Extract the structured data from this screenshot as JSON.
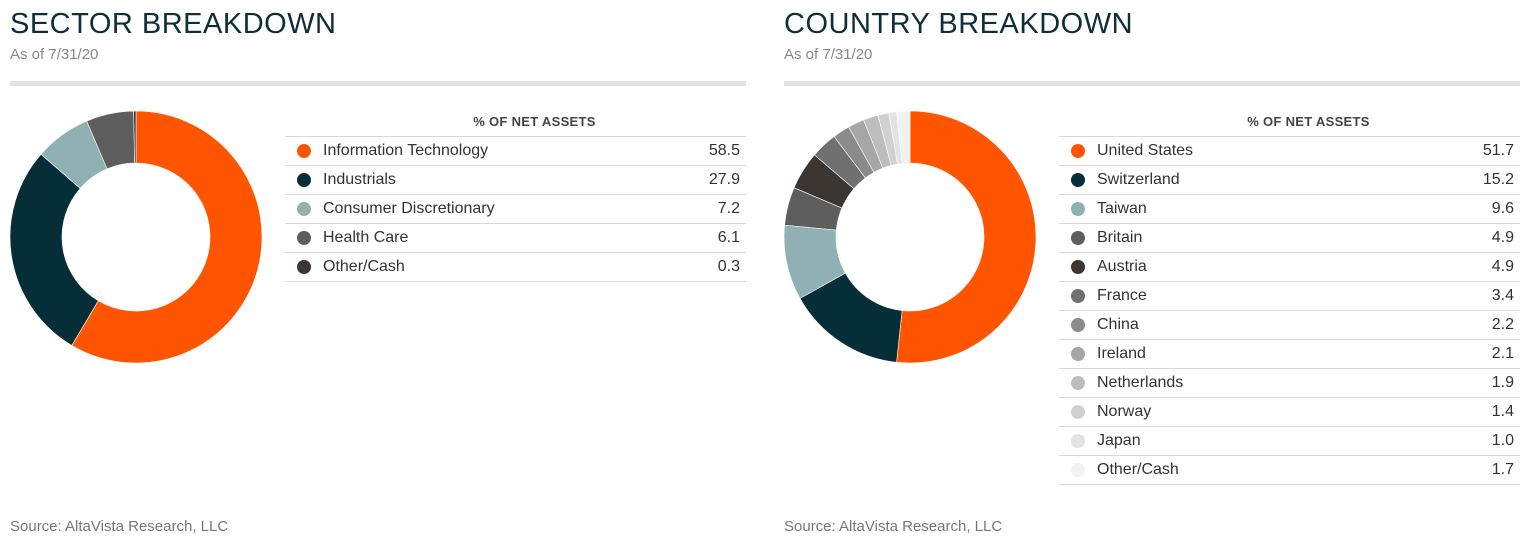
{
  "chart_data": [
    {
      "type": "pie",
      "title": "SECTOR BREAKDOWN",
      "subtitle": "As of 7/31/20",
      "table_header": "% OF NET ASSETS",
      "source": "Source: AltaVista Research, LLC",
      "categories": [
        "Information Technology",
        "Industrials",
        "Consumer Discretionary",
        "Health Care",
        "Other/Cash"
      ],
      "values": [
        58.5,
        27.9,
        7.2,
        6.1,
        0.3
      ],
      "value_labels": [
        "58.5",
        "27.9",
        "7.2",
        "6.1",
        "0.3"
      ],
      "colors": [
        "#ff5500",
        "#062e38",
        "#8fb1b3",
        "#5e5e5e",
        "#3b3631"
      ],
      "legend_position": "right"
    },
    {
      "type": "pie",
      "title": "COUNTRY BREAKDOWN",
      "subtitle": "As of 7/31/20",
      "table_header": "% OF NET ASSETS",
      "source": "Source: AltaVista Research, LLC",
      "categories": [
        "United States",
        "Switzerland",
        "Taiwan",
        "Britain",
        "Austria",
        "France",
        "China",
        "Ireland",
        "Netherlands",
        "Norway",
        "Japan",
        "Other/Cash"
      ],
      "values": [
        51.7,
        15.2,
        9.6,
        4.9,
        4.9,
        3.4,
        2.2,
        2.1,
        1.9,
        1.4,
        1.0,
        1.7
      ],
      "value_labels": [
        "51.7",
        "15.2",
        "9.6",
        "4.9",
        "4.9",
        "3.4",
        "2.2",
        "2.1",
        "1.9",
        "1.4",
        "1.0",
        "1.7"
      ],
      "colors": [
        "#ff5500",
        "#062e38",
        "#8fb1b3",
        "#5e5e5e",
        "#3b3631",
        "#707070",
        "#8b8b8b",
        "#a6a6a6",
        "#bdbdbd",
        "#d1d1d1",
        "#e3e3e3",
        "#f2f2f2"
      ],
      "legend_position": "right"
    }
  ]
}
